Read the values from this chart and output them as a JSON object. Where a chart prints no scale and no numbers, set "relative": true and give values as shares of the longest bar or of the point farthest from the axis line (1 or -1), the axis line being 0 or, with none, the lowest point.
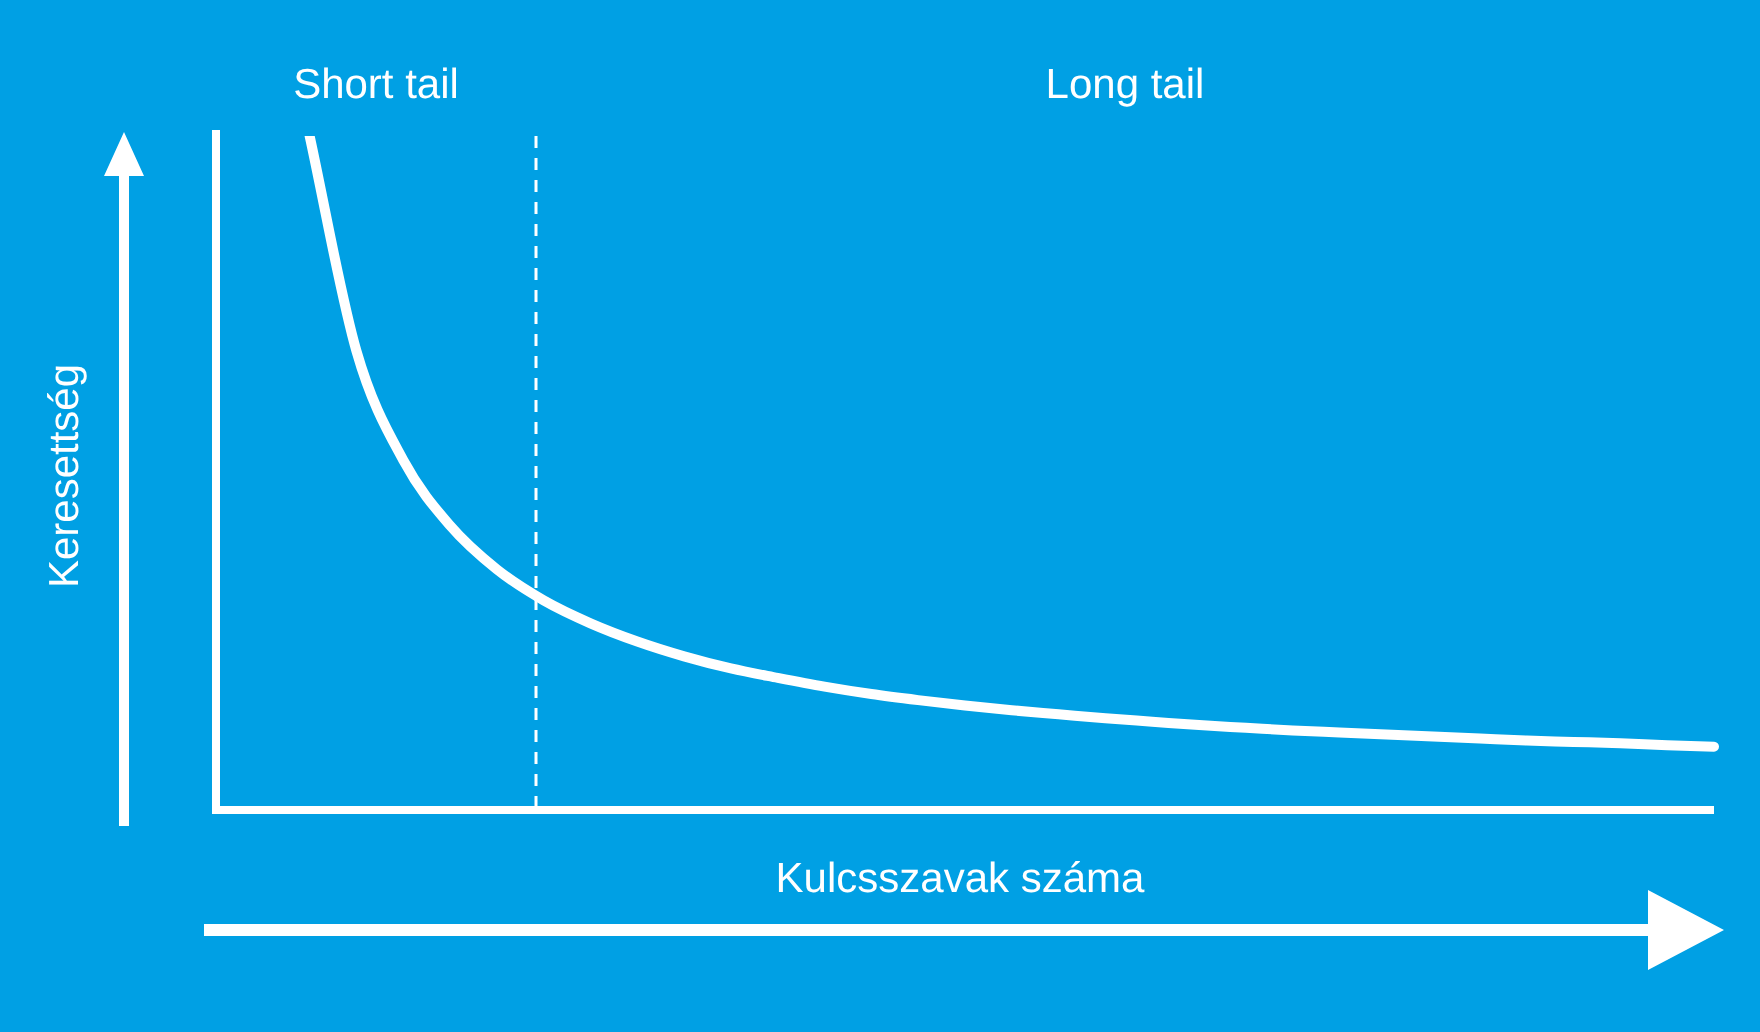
{
  "chart_data": {
    "type": "line",
    "relative": true,
    "xlabel": "Kulcsszavak száma",
    "ylabel": "Keresettség",
    "categories": [
      null,
      null,
      null,
      null,
      null,
      null,
      null,
      null,
      null,
      null,
      null,
      null,
      null,
      null,
      null,
      null,
      null,
      null,
      null,
      null,
      null,
      null,
      null,
      null,
      null,
      null,
      null,
      null,
      null,
      null,
      null,
      null,
      null
    ],
    "series": [
      {
        "color": "#ffffff",
        "values": [
          null,
          null,
          1,
          0.681,
          0.519,
          0.422,
          0.357,
          0.311,
          0.277,
          0.25,
          0.228,
          0.21,
          0.196,
          0.183,
          0.172,
          0.163,
          0.155,
          0.148,
          0.142,
          0.136,
          0.131,
          0.126,
          0.122,
          0.118,
          0.115,
          0.112,
          0.109,
          0.106,
          0.103,
          0.101,
          0.099,
          0.096,
          0.094
        ]
      }
    ],
    "annotations": [
      "Short tail",
      "Long tail"
    ]
  }
}
